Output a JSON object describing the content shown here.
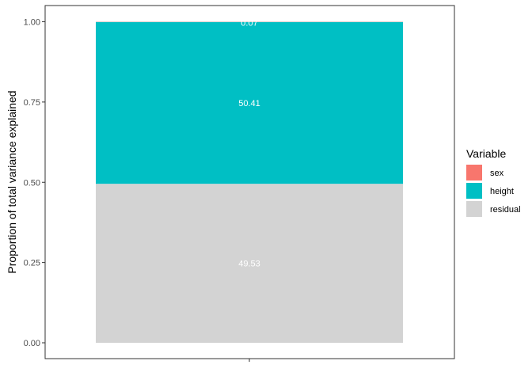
{
  "chart_data": {
    "type": "bar",
    "stacked": true,
    "categories": [
      ""
    ],
    "series": [
      {
        "name": "sex",
        "values": [
          0.0007
        ],
        "label": "0.07",
        "color": "#F8766D"
      },
      {
        "name": "height",
        "values": [
          0.5041
        ],
        "label": "50.41",
        "color": "#00BFC4"
      },
      {
        "name": "residual",
        "values": [
          0.4953
        ],
        "label": "49.53",
        "color": "#D3D3D3"
      }
    ],
    "stack_order_bottom_to_top": [
      "residual",
      "height",
      "sex"
    ],
    "title": "",
    "xlabel": "",
    "ylabel": "Proportion of total variance explained",
    "ylim": [
      0,
      1
    ],
    "yticks": [
      "0.00",
      "0.25",
      "0.50",
      "0.75",
      "1.00"
    ],
    "grid": false,
    "legend": {
      "title": "Variable",
      "position": "right",
      "items": [
        "sex",
        "height",
        "residual"
      ]
    }
  }
}
